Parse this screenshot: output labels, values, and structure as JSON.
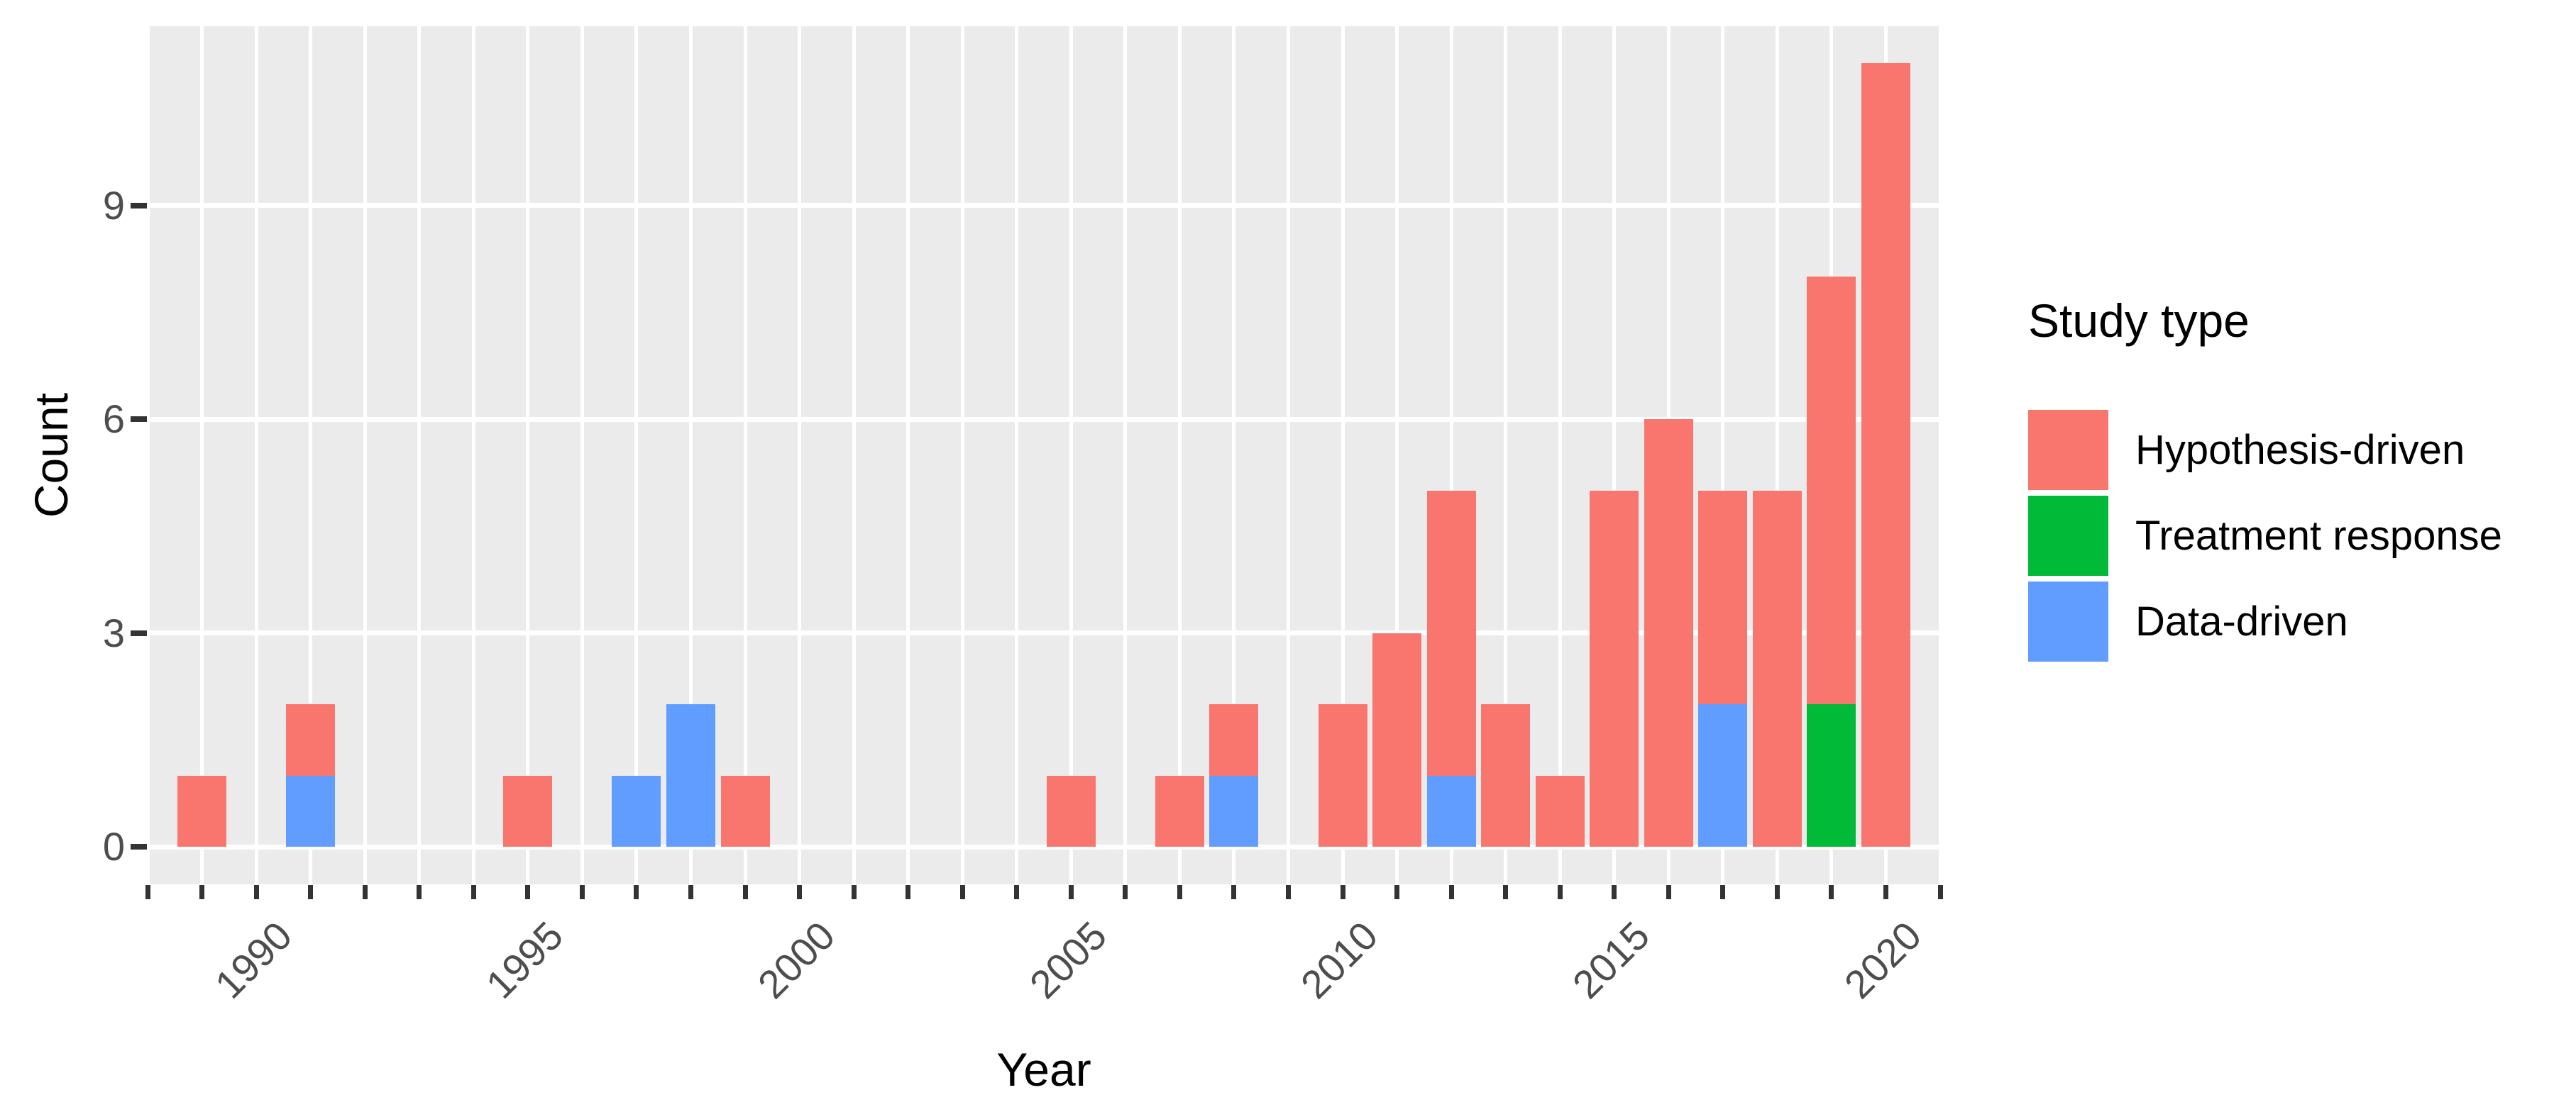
{
  "chart_data": {
    "type": "bar",
    "stacked": true,
    "title": "",
    "xlabel": "Year",
    "ylabel": "Count",
    "grid": "ggplot-gray-panel-white-gridlines",
    "panel_background": "#EBEBEB",
    "gridline_color": "#FFFFFF",
    "axis_text_color": "#4D4D4D",
    "axis_tick_color": "#333333",
    "xlim": [
      1988,
      2021
    ],
    "ylim": [
      0,
      11.55
    ],
    "x_tick_years_start": 1988,
    "x_tick_years_end": 2021,
    "x_labeled_ticks": [
      1990,
      1995,
      2000,
      2005,
      2010,
      2015,
      2020
    ],
    "y_ticks": [
      0,
      3,
      6,
      9
    ],
    "legend": {
      "title": "Study type",
      "position": "right"
    },
    "series": [
      {
        "key": "hypothesis",
        "label": "Hypothesis-driven",
        "color": "#F8766D"
      },
      {
        "key": "treatment",
        "label": "Treatment response",
        "color": "#00BA38"
      },
      {
        "key": "data",
        "label": "Data-driven",
        "color": "#619CFF"
      }
    ],
    "stack_order_bottom_to_top": [
      "data",
      "treatment",
      "hypothesis"
    ],
    "bars": [
      {
        "year": 1989,
        "segments": {
          "hypothesis": 1
        }
      },
      {
        "year": 1991,
        "segments": {
          "data": 1,
          "hypothesis": 1
        }
      },
      {
        "year": 1995,
        "segments": {
          "hypothesis": 1
        }
      },
      {
        "year": 1997,
        "segments": {
          "data": 1
        }
      },
      {
        "year": 1998,
        "segments": {
          "data": 2
        }
      },
      {
        "year": 1999,
        "segments": {
          "hypothesis": 1
        }
      },
      {
        "year": 2005,
        "segments": {
          "hypothesis": 1
        }
      },
      {
        "year": 2007,
        "segments": {
          "hypothesis": 1
        }
      },
      {
        "year": 2008,
        "segments": {
          "data": 1,
          "hypothesis": 1
        }
      },
      {
        "year": 2010,
        "segments": {
          "hypothesis": 2
        }
      },
      {
        "year": 2011,
        "segments": {
          "hypothesis": 3
        }
      },
      {
        "year": 2012,
        "segments": {
          "data": 1,
          "hypothesis": 4
        }
      },
      {
        "year": 2013,
        "segments": {
          "hypothesis": 2
        }
      },
      {
        "year": 2014,
        "segments": {
          "hypothesis": 1
        }
      },
      {
        "year": 2015,
        "segments": {
          "hypothesis": 5
        }
      },
      {
        "year": 2016,
        "segments": {
          "hypothesis": 6
        }
      },
      {
        "year": 2017,
        "segments": {
          "data": 2,
          "hypothesis": 3
        }
      },
      {
        "year": 2018,
        "segments": {
          "hypothesis": 5
        }
      },
      {
        "year": 2019,
        "segments": {
          "treatment": 2,
          "hypothesis": 6
        }
      },
      {
        "year": 2020,
        "segments": {
          "hypothesis": 11
        }
      }
    ]
  }
}
